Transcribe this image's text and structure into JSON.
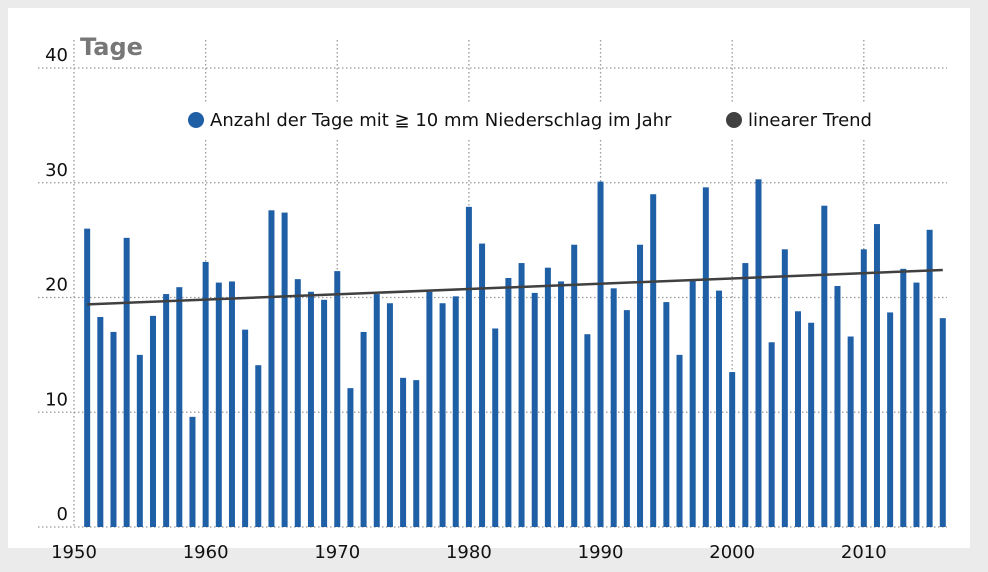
{
  "chart_data": {
    "type": "bar",
    "y_label": "Tage",
    "x": [
      1951,
      1952,
      1953,
      1954,
      1955,
      1956,
      1957,
      1958,
      1959,
      1960,
      1961,
      1962,
      1963,
      1964,
      1965,
      1966,
      1967,
      1968,
      1969,
      1970,
      1971,
      1972,
      1973,
      1974,
      1975,
      1976,
      1977,
      1978,
      1979,
      1980,
      1981,
      1982,
      1983,
      1984,
      1985,
      1986,
      1987,
      1988,
      1989,
      1990,
      1991,
      1992,
      1993,
      1994,
      1995,
      1996,
      1997,
      1998,
      1999,
      2000,
      2001,
      2002,
      2003,
      2004,
      2005,
      2006,
      2007,
      2008,
      2009,
      2010,
      2011,
      2012,
      2013,
      2014,
      2015,
      2016
    ],
    "series": [
      {
        "name": "Anzahl der Tage mit ≧ 10 mm Niederschlag im Jahr",
        "color": "#1f5fa6",
        "values": [
          26.0,
          18.3,
          17.0,
          25.2,
          15.0,
          18.4,
          20.3,
          20.9,
          9.6,
          23.1,
          21.3,
          21.4,
          17.2,
          14.1,
          27.6,
          27.4,
          21.6,
          20.5,
          19.8,
          22.3,
          12.1,
          17.0,
          20.3,
          19.5,
          13.0,
          12.8,
          20.5,
          19.5,
          20.1,
          27.9,
          24.7,
          17.3,
          21.7,
          23.0,
          20.4,
          22.6,
          21.4,
          24.6,
          16.8,
          30.1,
          20.8,
          18.9,
          24.6,
          29.0,
          19.6,
          15.0,
          21.6,
          29.6,
          20.6,
          13.5,
          23.0,
          30.3,
          16.1,
          24.2,
          18.8,
          17.8,
          28.0,
          21.0,
          16.6,
          24.2,
          26.4,
          18.7,
          22.5,
          21.3,
          25.9,
          18.2
        ]
      }
    ],
    "trend": {
      "name": "linearer Trend",
      "color": "#404040",
      "x": [
        1951,
        2016
      ],
      "values": [
        19.4,
        22.4
      ]
    },
    "xlim": [
      1950,
      2016.7
    ],
    "xticks": [
      1950,
      1960,
      1970,
      1980,
      1990,
      2000,
      2010
    ],
    "ylim": [
      0,
      40
    ],
    "yticks": [
      0,
      10,
      20,
      30,
      40
    ],
    "grid": true
  }
}
